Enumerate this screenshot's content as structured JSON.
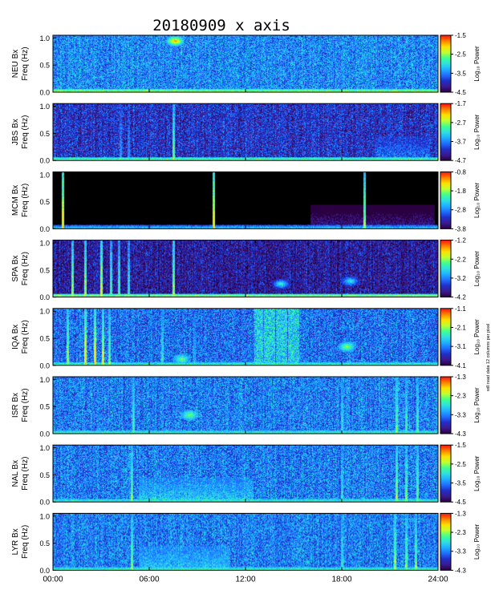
{
  "chart_data": {
    "type": "heatmap",
    "title": "20180909  x axis",
    "xlabel": "",
    "xlim_hours": [
      0,
      24
    ],
    "x_tick_labels": [
      "00:00",
      "06:00",
      "12:00",
      "18:00",
      "24:00"
    ],
    "x_tick_hours": [
      0,
      6,
      12,
      18,
      24
    ],
    "ylim": [
      0.0,
      1.05
    ],
    "y_tick_labels": [
      "0.0",
      "0.5",
      "1.0"
    ],
    "y_tick_values": [
      0.0,
      0.5,
      1.0
    ],
    "ylabel_line2": "Freq (Hz)",
    "colorbar_label": "Log₁₀ Power",
    "note": "will read data 12 columns per pixel",
    "colormap": [
      "#2a0040",
      "#3b1a8f",
      "#2030c8",
      "#1f6fff",
      "#1fb0ff",
      "#2fe0e0",
      "#40ff90",
      "#c0ff30",
      "#ffe000",
      "#ff8000",
      "#ff1010"
    ],
    "panels": [
      {
        "station": "NEU",
        "ylabel_line1": "NEU Bx",
        "colorbar_ticks": [
          "-1.5",
          "-2.5",
          "-3.5",
          "-4.5"
        ],
        "background": "speckled",
        "base": 0.32,
        "features": [
          {
            "kind": "lowband",
            "t0": 0,
            "t1": 24,
            "strength": 0.45
          },
          {
            "kind": "blob",
            "t": 7.6,
            "f": 0.95,
            "strength": 0.5
          }
        ]
      },
      {
        "station": "JBS",
        "ylabel_line1": "JBS Bx",
        "colorbar_ticks": [
          "-1.7",
          "-2.7",
          "-3.7",
          "-4.7"
        ],
        "background": "speckled",
        "base": 0.18,
        "features": [
          {
            "kind": "lowband",
            "t0": 0,
            "t1": 24,
            "strength": 0.4
          },
          {
            "kind": "spike",
            "t": 7.5,
            "strength": 0.55
          },
          {
            "kind": "spike",
            "t": 4.2,
            "strength": 0.3
          },
          {
            "kind": "spike",
            "t": 4.7,
            "strength": 0.3
          },
          {
            "kind": "burst",
            "t0": 20,
            "t1": 23.5,
            "strength": 0.35
          }
        ]
      },
      {
        "station": "MCM",
        "ylabel_line1": "MCM Bx",
        "colorbar_ticks": [
          "-0.8",
          "-1.8",
          "-2.8",
          "-3.8"
        ],
        "background": "black",
        "base": 0.0,
        "features": [
          {
            "kind": "lowband",
            "t0": 0,
            "t1": 24,
            "strength": 0.25
          },
          {
            "kind": "spike",
            "t": 0.6,
            "strength": 0.7
          },
          {
            "kind": "spike",
            "t": 10.0,
            "strength": 0.7
          },
          {
            "kind": "spike",
            "t": 19.4,
            "strength": 0.6
          },
          {
            "kind": "burst",
            "t0": 16,
            "t1": 23.8,
            "strength": 0.3
          }
        ]
      },
      {
        "station": "SPA",
        "ylabel_line1": "SPA Bx",
        "colorbar_ticks": [
          "-1.2",
          "-2.2",
          "-3.2",
          "-4.2"
        ],
        "background": "speckled",
        "base": 0.12,
        "features": [
          {
            "kind": "lowband",
            "t0": 0,
            "t1": 24,
            "strength": 0.45
          },
          {
            "kind": "spike",
            "t": 1.2,
            "strength": 0.6
          },
          {
            "kind": "spike",
            "t": 2.0,
            "strength": 0.6
          },
          {
            "kind": "spike",
            "t": 3.0,
            "strength": 0.65
          },
          {
            "kind": "spike",
            "t": 3.6,
            "strength": 0.5
          },
          {
            "kind": "spike",
            "t": 4.1,
            "strength": 0.5
          },
          {
            "kind": "spike",
            "t": 4.7,
            "strength": 0.45
          },
          {
            "kind": "spike",
            "t": 7.5,
            "strength": 0.6
          },
          {
            "kind": "blob",
            "t": 14.2,
            "f": 0.25,
            "strength": 0.4
          },
          {
            "kind": "blob",
            "t": 18.5,
            "f": 0.3,
            "strength": 0.35
          }
        ]
      },
      {
        "station": "IQA",
        "ylabel_line1": "IQA Bx",
        "colorbar_ticks": [
          "-1.1",
          "-2.1",
          "-3.1",
          "-4.1"
        ],
        "background": "speckled",
        "base": 0.28,
        "features": [
          {
            "kind": "lowband",
            "t0": 0,
            "t1": 24,
            "strength": 0.35
          },
          {
            "kind": "spike",
            "t": 0.9,
            "strength": 0.6
          },
          {
            "kind": "spike",
            "t": 2.0,
            "strength": 0.7
          },
          {
            "kind": "spike",
            "t": 2.6,
            "strength": 0.7
          },
          {
            "kind": "spike",
            "t": 3.1,
            "strength": 0.65
          },
          {
            "kind": "spike",
            "t": 3.5,
            "strength": 0.55
          },
          {
            "kind": "spike",
            "t": 6.8,
            "strength": 0.45
          },
          {
            "kind": "spike",
            "t": 8.8,
            "strength": 0.35
          },
          {
            "kind": "column",
            "t0": 12.5,
            "t1": 15.3,
            "strength": 0.35
          },
          {
            "kind": "blob",
            "t": 18.3,
            "f": 0.35,
            "strength": 0.35
          },
          {
            "kind": "blob",
            "t": 8.0,
            "f": 0.12,
            "strength": 0.3
          }
        ]
      },
      {
        "station": "ISR",
        "ylabel_line1": "ISR Bx",
        "colorbar_ticks": [
          "-1.3",
          "-2.3",
          "-3.3",
          "-4.3"
        ],
        "background": "speckled",
        "base": 0.3,
        "features": [
          {
            "kind": "lowband",
            "t0": 0,
            "t1": 24,
            "strength": 0.35
          },
          {
            "kind": "spike",
            "t": 5.0,
            "strength": 0.5
          },
          {
            "kind": "spike",
            "t": 18.0,
            "strength": 0.45
          },
          {
            "kind": "spike",
            "t": 21.4,
            "strength": 0.55
          },
          {
            "kind": "spike",
            "t": 22.0,
            "strength": 0.5
          },
          {
            "kind": "spike",
            "t": 22.7,
            "strength": 0.5
          },
          {
            "kind": "blob",
            "t": 8.5,
            "f": 0.35,
            "strength": 0.3
          }
        ]
      },
      {
        "station": "NAL",
        "ylabel_line1": "NAL Bx",
        "colorbar_ticks": [
          "-1.5",
          "-2.5",
          "-3.5",
          "-4.5"
        ],
        "background": "speckled",
        "base": 0.3,
        "features": [
          {
            "kind": "lowband",
            "t0": 0,
            "t1": 24,
            "strength": 0.35
          },
          {
            "kind": "spike",
            "t": 4.9,
            "strength": 0.55
          },
          {
            "kind": "burst",
            "t0": 5.3,
            "t1": 12.5,
            "strength": 0.35
          },
          {
            "kind": "spike",
            "t": 18.0,
            "strength": 0.45
          },
          {
            "kind": "spike",
            "t": 21.4,
            "strength": 0.6
          },
          {
            "kind": "spike",
            "t": 22.0,
            "strength": 0.55
          },
          {
            "kind": "spike",
            "t": 22.7,
            "strength": 0.55
          }
        ]
      },
      {
        "station": "LYR",
        "ylabel_line1": "LYR Bx",
        "colorbar_ticks": [
          "-1.3",
          "-2.3",
          "-3.3",
          "-4.3"
        ],
        "background": "speckled",
        "base": 0.3,
        "features": [
          {
            "kind": "lowband",
            "t0": 0,
            "t1": 24,
            "strength": 0.35
          },
          {
            "kind": "spike",
            "t": 4.9,
            "strength": 0.55
          },
          {
            "kind": "burst",
            "t0": 5.3,
            "t1": 11.0,
            "strength": 0.3
          },
          {
            "kind": "spike",
            "t": 18.0,
            "strength": 0.45
          },
          {
            "kind": "spike",
            "t": 21.3,
            "strength": 0.6
          },
          {
            "kind": "spike",
            "t": 22.0,
            "strength": 0.55
          },
          {
            "kind": "spike",
            "t": 22.6,
            "strength": 0.55
          }
        ]
      }
    ]
  }
}
